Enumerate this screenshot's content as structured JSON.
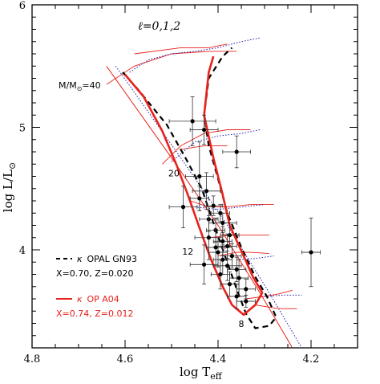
{
  "chart_data": {
    "type": "scatter",
    "xlabel": "log T",
    "xlabel_sub": "eff",
    "ylabel": "log L/L",
    "ylabel_sub": "⊙",
    "xlim": [
      4.8,
      4.1
    ],
    "ylim": [
      3.2,
      6.0
    ],
    "x_ticks": [
      {
        "value": 4.8,
        "label": "4.8"
      },
      {
        "value": 4.6,
        "label": "4.6"
      },
      {
        "value": 4.4,
        "label": "4.4"
      },
      {
        "value": 4.2,
        "label": "4.2"
      }
    ],
    "y_ticks": [
      {
        "value": 4,
        "label": "4"
      },
      {
        "value": 5,
        "label": "5"
      },
      {
        "value": 6,
        "label": "6"
      }
    ],
    "annotations": {
      "ell": "ℓ=0,1,2",
      "mass_prefix": "M/M",
      "mass_sub": "⊙",
      "mass_value": "=40",
      "mass_labels": [
        {
          "text": "20",
          "x": 4.495,
          "y": 4.6
        },
        {
          "text": "12",
          "x": 4.465,
          "y": 3.96
        },
        {
          "text": "8",
          "x": 4.35,
          "y": 3.37
        }
      ]
    },
    "legend": {
      "placement": "bottom-left",
      "entries": [
        {
          "prefix": "κ",
          "label": "OPAL GN93",
          "sub": "X=0.70, Z=0.020",
          "color": "#000000",
          "style": "dashed"
        },
        {
          "prefix": "κ",
          "label": "OP A04",
          "sub": "X=0.74, Z=0.012",
          "color": "#e8221c",
          "style": "solid"
        }
      ]
    },
    "colors": {
      "red": "#e8221c",
      "blue": "#2020b0",
      "black": "#000000"
    },
    "data_points": [
      {
        "x": 4.455,
        "y": 5.05,
        "xerr": 0.05,
        "yerr": 0.2
      },
      {
        "x": 4.43,
        "y": 4.98,
        "xerr": 0.03,
        "yerr": 0.12
      },
      {
        "x": 4.36,
        "y": 4.8,
        "xerr": 0.03,
        "yerr": 0.13
      },
      {
        "x": 4.44,
        "y": 4.6,
        "xerr": 0.03,
        "yerr": 0.28
      },
      {
        "x": 4.425,
        "y": 4.48,
        "xerr": 0.03,
        "yerr": 0.15
      },
      {
        "x": 4.44,
        "y": 4.42,
        "xerr": 0.02,
        "yerr": 0.1
      },
      {
        "x": 4.475,
        "y": 4.35,
        "xerr": 0.03,
        "yerr": 0.17
      },
      {
        "x": 4.41,
        "y": 4.36,
        "xerr": 0.02,
        "yerr": 0.08
      },
      {
        "x": 4.395,
        "y": 4.3,
        "xerr": 0.02,
        "yerr": 0.07
      },
      {
        "x": 4.42,
        "y": 4.25,
        "xerr": 0.02,
        "yerr": 0.1
      },
      {
        "x": 4.39,
        "y": 4.22,
        "xerr": 0.03,
        "yerr": 0.08
      },
      {
        "x": 4.405,
        "y": 4.16,
        "xerr": 0.02,
        "yerr": 0.1
      },
      {
        "x": 4.42,
        "y": 4.1,
        "xerr": 0.03,
        "yerr": 0.18
      },
      {
        "x": 4.375,
        "y": 4.12,
        "xerr": 0.02,
        "yerr": 0.1
      },
      {
        "x": 4.39,
        "y": 4.07,
        "xerr": 0.02,
        "yerr": 0.12
      },
      {
        "x": 4.405,
        "y": 4.02,
        "xerr": 0.02,
        "yerr": 0.15
      },
      {
        "x": 4.38,
        "y": 4.03,
        "xerr": 0.02,
        "yerr": 0.1
      },
      {
        "x": 4.4,
        "y": 3.98,
        "xerr": 0.02,
        "yerr": 0.12
      },
      {
        "x": 4.37,
        "y": 3.95,
        "xerr": 0.02,
        "yerr": 0.1
      },
      {
        "x": 4.39,
        "y": 3.92,
        "xerr": 0.02,
        "yerr": 0.12
      },
      {
        "x": 4.43,
        "y": 3.88,
        "xerr": 0.03,
        "yerr": 0.16
      },
      {
        "x": 4.38,
        "y": 3.87,
        "xerr": 0.03,
        "yerr": 0.12
      },
      {
        "x": 4.36,
        "y": 3.84,
        "xerr": 0.02,
        "yerr": 0.1
      },
      {
        "x": 4.395,
        "y": 3.8,
        "xerr": 0.02,
        "yerr": 0.12
      },
      {
        "x": 4.355,
        "y": 3.77,
        "xerr": 0.02,
        "yerr": 0.15
      },
      {
        "x": 4.375,
        "y": 3.72,
        "xerr": 0.02,
        "yerr": 0.1
      },
      {
        "x": 4.34,
        "y": 3.68,
        "xerr": 0.02,
        "yerr": 0.08
      },
      {
        "x": 4.36,
        "y": 3.62,
        "xerr": 0.02,
        "yerr": 0.1
      },
      {
        "x": 4.34,
        "y": 3.58,
        "xerr": 0.02,
        "yerr": 0.05
      },
      {
        "x": 4.2,
        "y": 3.98,
        "xerr": 0.02,
        "yerr": 0.28
      }
    ],
    "curves": {
      "zams_red": [
        [
          4.64,
          5.5
        ],
        [
          4.5,
          4.75
        ],
        [
          4.4,
          4.2
        ],
        [
          4.31,
          3.65
        ],
        [
          4.24,
          3.2
        ]
      ],
      "zams_blue": [
        [
          4.62,
          5.5
        ],
        [
          4.48,
          4.75
        ],
        [
          4.38,
          4.2
        ],
        [
          4.29,
          3.65
        ],
        [
          4.22,
          3.2
        ]
      ],
      "black_dashed": [
        [
          4.605,
          5.45
        ],
        [
          4.57,
          5.3
        ],
        [
          4.51,
          5.02
        ],
        [
          4.47,
          4.75
        ],
        [
          4.435,
          4.5
        ],
        [
          4.41,
          4.22
        ],
        [
          4.385,
          3.95
        ],
        [
          4.36,
          3.68
        ],
        [
          4.34,
          3.48
        ],
        [
          4.32,
          3.36
        ],
        [
          4.29,
          3.38
        ],
        [
          4.275,
          3.45
        ],
        [
          4.295,
          3.62
        ],
        [
          4.32,
          3.78
        ],
        [
          4.35,
          4.02
        ],
        [
          4.38,
          4.3
        ],
        [
          4.4,
          4.58
        ],
        [
          4.42,
          4.85
        ],
        [
          4.43,
          5.1
        ],
        [
          4.42,
          5.4
        ],
        [
          4.39,
          5.58
        ],
        [
          4.37,
          5.65
        ]
      ],
      "red_thick": [
        [
          4.6,
          5.43
        ],
        [
          4.56,
          5.25
        ],
        [
          4.52,
          4.97
        ],
        [
          4.49,
          4.7
        ],
        [
          4.465,
          4.45
        ],
        [
          4.44,
          4.18
        ],
        [
          4.415,
          3.92
        ],
        [
          4.39,
          3.7
        ],
        [
          4.37,
          3.55
        ],
        [
          4.345,
          3.47
        ],
        [
          4.32,
          3.55
        ],
        [
          4.305,
          3.65
        ],
        [
          4.325,
          3.78
        ],
        [
          4.345,
          3.95
        ],
        [
          4.375,
          4.2
        ],
        [
          4.39,
          4.45
        ],
        [
          4.41,
          4.75
        ],
        [
          4.43,
          5.1
        ],
        [
          4.42,
          5.45
        ],
        [
          4.41,
          5.58
        ]
      ],
      "red_thin_tracks": [
        [
          [
            4.64,
            5.35
          ],
          [
            4.58,
            5.5
          ],
          [
            4.5,
            5.6
          ],
          [
            4.42,
            5.62
          ],
          [
            4.36,
            5.62
          ]
        ],
        [
          [
            4.58,
            5.6
          ],
          [
            4.48,
            5.65
          ],
          [
            4.42,
            5.65
          ],
          [
            4.38,
            5.68
          ]
        ],
        [
          [
            4.52,
            4.7
          ],
          [
            4.48,
            4.85
          ],
          [
            4.43,
            4.95
          ],
          [
            4.38,
            4.98
          ],
          [
            4.33,
            4.98
          ]
        ],
        [
          [
            4.48,
            4.82
          ],
          [
            4.43,
            4.85
          ],
          [
            4.38,
            4.85
          ]
        ],
        [
          [
            4.46,
            4.4
          ],
          [
            4.42,
            4.35
          ],
          [
            4.38,
            4.35
          ],
          [
            4.33,
            4.37
          ],
          [
            4.28,
            4.37
          ]
        ],
        [
          [
            4.42,
            4.1
          ],
          [
            4.37,
            4.12
          ],
          [
            4.33,
            4.12
          ],
          [
            4.29,
            4.12
          ]
        ],
        [
          [
            4.4,
            3.95
          ],
          [
            4.36,
            3.98
          ],
          [
            4.33,
            3.98
          ],
          [
            4.29,
            3.97
          ]
        ],
        [
          [
            4.34,
            3.6
          ],
          [
            4.3,
            3.62
          ],
          [
            4.27,
            3.64
          ],
          [
            4.24,
            3.67
          ]
        ],
        [
          [
            4.32,
            3.55
          ],
          [
            4.27,
            3.52
          ],
          [
            4.23,
            3.52
          ]
        ]
      ],
      "blue_dotted_tracks": [
        [
          [
            4.59,
            5.45
          ],
          [
            4.55,
            5.55
          ],
          [
            4.5,
            5.6
          ],
          [
            4.45,
            5.62
          ],
          [
            4.4,
            5.65
          ],
          [
            4.35,
            5.7
          ],
          [
            4.31,
            5.73
          ]
        ],
        [
          [
            4.5,
            4.72
          ],
          [
            4.45,
            4.88
          ],
          [
            4.4,
            4.93
          ],
          [
            4.35,
            4.95
          ],
          [
            4.31,
            4.98
          ]
        ],
        [
          [
            4.45,
            4.35
          ],
          [
            4.4,
            4.33
          ],
          [
            4.35,
            4.35
          ],
          [
            4.3,
            4.37
          ]
        ],
        [
          [
            4.36,
            3.92
          ],
          [
            4.32,
            3.93
          ],
          [
            4.28,
            3.95
          ]
        ],
        [
          [
            4.3,
            3.62
          ],
          [
            4.26,
            3.63
          ],
          [
            4.22,
            3.63
          ]
        ]
      ]
    }
  }
}
